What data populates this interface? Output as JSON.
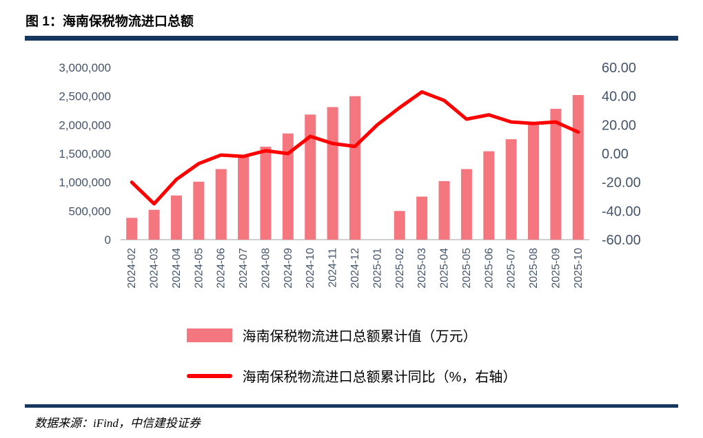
{
  "header": {
    "title": "图 1：海南保税物流进口总额"
  },
  "footer": {
    "source": "数据来源：iFind，中信建投证券"
  },
  "legend": [
    {
      "label": "海南保税物流进口总额累计值（万元）",
      "swatch": "bar"
    },
    {
      "label": "海南保税物流进口总额累计同比（%，右轴）",
      "swatch": "line"
    }
  ],
  "colors": {
    "rule": "#17375E",
    "bar": "#F4777F",
    "line": "#FE0000",
    "axis_text": "#44546A",
    "baseline": "#BFBFBF"
  },
  "chart_data": {
    "type": "bar",
    "subtype": "combo-bar-line",
    "title": "海南保税物流进口总额",
    "categories": [
      "2024-02",
      "2024-03",
      "2024-04",
      "2024-05",
      "2024-06",
      "2024-07",
      "2024-08",
      "2024-09",
      "2024-10",
      "2024-11",
      "2024-12",
      "2025-01",
      "2025-02",
      "2025-03",
      "2025-04",
      "2025-05",
      "2025-06",
      "2025-07",
      "2025-08",
      "2025-09",
      "2025-10"
    ],
    "series": [
      {
        "name": "海南保税物流进口总额累计值（万元）",
        "type": "bar",
        "axis": "left",
        "color": "#F4777F",
        "values": [
          380000,
          520000,
          770000,
          1010000,
          1230000,
          1440000,
          1620000,
          1850000,
          2180000,
          2310000,
          2500000,
          null,
          500000,
          750000,
          1020000,
          1230000,
          1540000,
          1750000,
          2010000,
          2280000,
          2520000
        ]
      },
      {
        "name": "海南保税物流进口总额累计同比（%，右轴）",
        "type": "line",
        "axis": "right",
        "color": "#FE0000",
        "values": [
          -20,
          -35,
          -18,
          -7,
          -1,
          -2,
          2,
          0,
          12,
          7,
          5,
          20,
          32,
          43,
          37,
          24,
          27,
          22,
          21,
          22,
          15
        ]
      }
    ],
    "left_axis": {
      "min": 0,
      "max": 3000000,
      "step": 500000,
      "tick_labels": [
        "0",
        "500,000",
        "1,000,000",
        "1,500,000",
        "2,000,000",
        "2,500,000",
        "3,000,000"
      ]
    },
    "right_axis": {
      "min": -60,
      "max": 60,
      "step": 20,
      "tick_labels": [
        "-60.00",
        "-40.00",
        "-20.00",
        "0.00",
        "20.00",
        "40.00",
        "60.00"
      ]
    },
    "grid": false,
    "legend_position": "bottom"
  }
}
